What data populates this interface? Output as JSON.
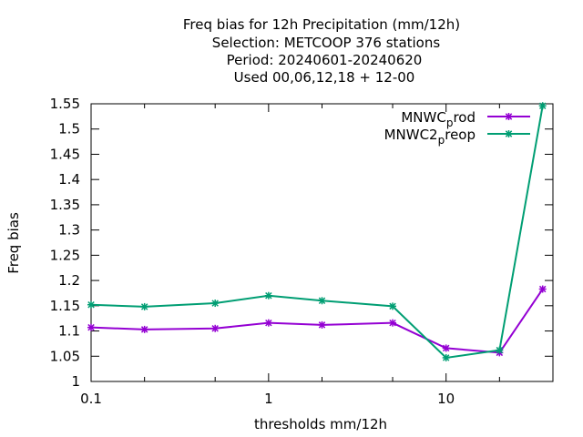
{
  "chart_data": {
    "type": "line",
    "title_lines": [
      "Freq bias  for 12h Precipitation (mm/12h)",
      "Selection: METCOOP    376 stations",
      "Period: 20240601-20240620",
      "Used  00,06,12,18 + 12-00"
    ],
    "xlabel": "thresholds mm/12h",
    "ylabel": "Freq bias",
    "x_scale": "log",
    "xlim": [
      0.1,
      40
    ],
    "ylim": [
      1.0,
      1.55
    ],
    "x_ticks": [
      {
        "value": 0.1,
        "label": "0.1"
      },
      {
        "value": 1,
        "label": "1"
      },
      {
        "value": 10,
        "label": "10"
      }
    ],
    "x_minor_ticks": [
      0.2,
      0.5,
      2,
      5,
      20
    ],
    "y_ticks": [
      {
        "value": 1.0,
        "label": "1"
      },
      {
        "value": 1.05,
        "label": "1.05"
      },
      {
        "value": 1.1,
        "label": "1.1"
      },
      {
        "value": 1.15,
        "label": "1.15"
      },
      {
        "value": 1.2,
        "label": "1.2"
      },
      {
        "value": 1.25,
        "label": "1.25"
      },
      {
        "value": 1.3,
        "label": "1.3"
      },
      {
        "value": 1.35,
        "label": "1.35"
      },
      {
        "value": 1.4,
        "label": "1.4"
      },
      {
        "value": 1.45,
        "label": "1.45"
      },
      {
        "value": 1.5,
        "label": "1.5"
      },
      {
        "value": 1.55,
        "label": "1.55"
      }
    ],
    "grid": false,
    "legend_position": "top-right",
    "x": [
      0.1,
      0.2,
      0.5,
      1,
      2,
      5,
      10,
      20,
      35
    ],
    "series": [
      {
        "name": "MNWC_prod",
        "legend_main": "MNWC",
        "legend_sub": "p",
        "legend_rest": "rod",
        "color": "#9400d3",
        "marker": "star",
        "values": [
          1.107,
          1.103,
          1.105,
          1.116,
          1.112,
          1.116,
          1.066,
          1.057,
          1.183
        ]
      },
      {
        "name": "MNWC2_preop",
        "legend_main": "MNWC2",
        "legend_sub": "p",
        "legend_rest": "reop",
        "color": "#009e73",
        "marker": "star",
        "values": [
          1.152,
          1.148,
          1.155,
          1.17,
          1.16,
          1.149,
          1.047,
          1.062,
          1.546
        ]
      }
    ]
  }
}
